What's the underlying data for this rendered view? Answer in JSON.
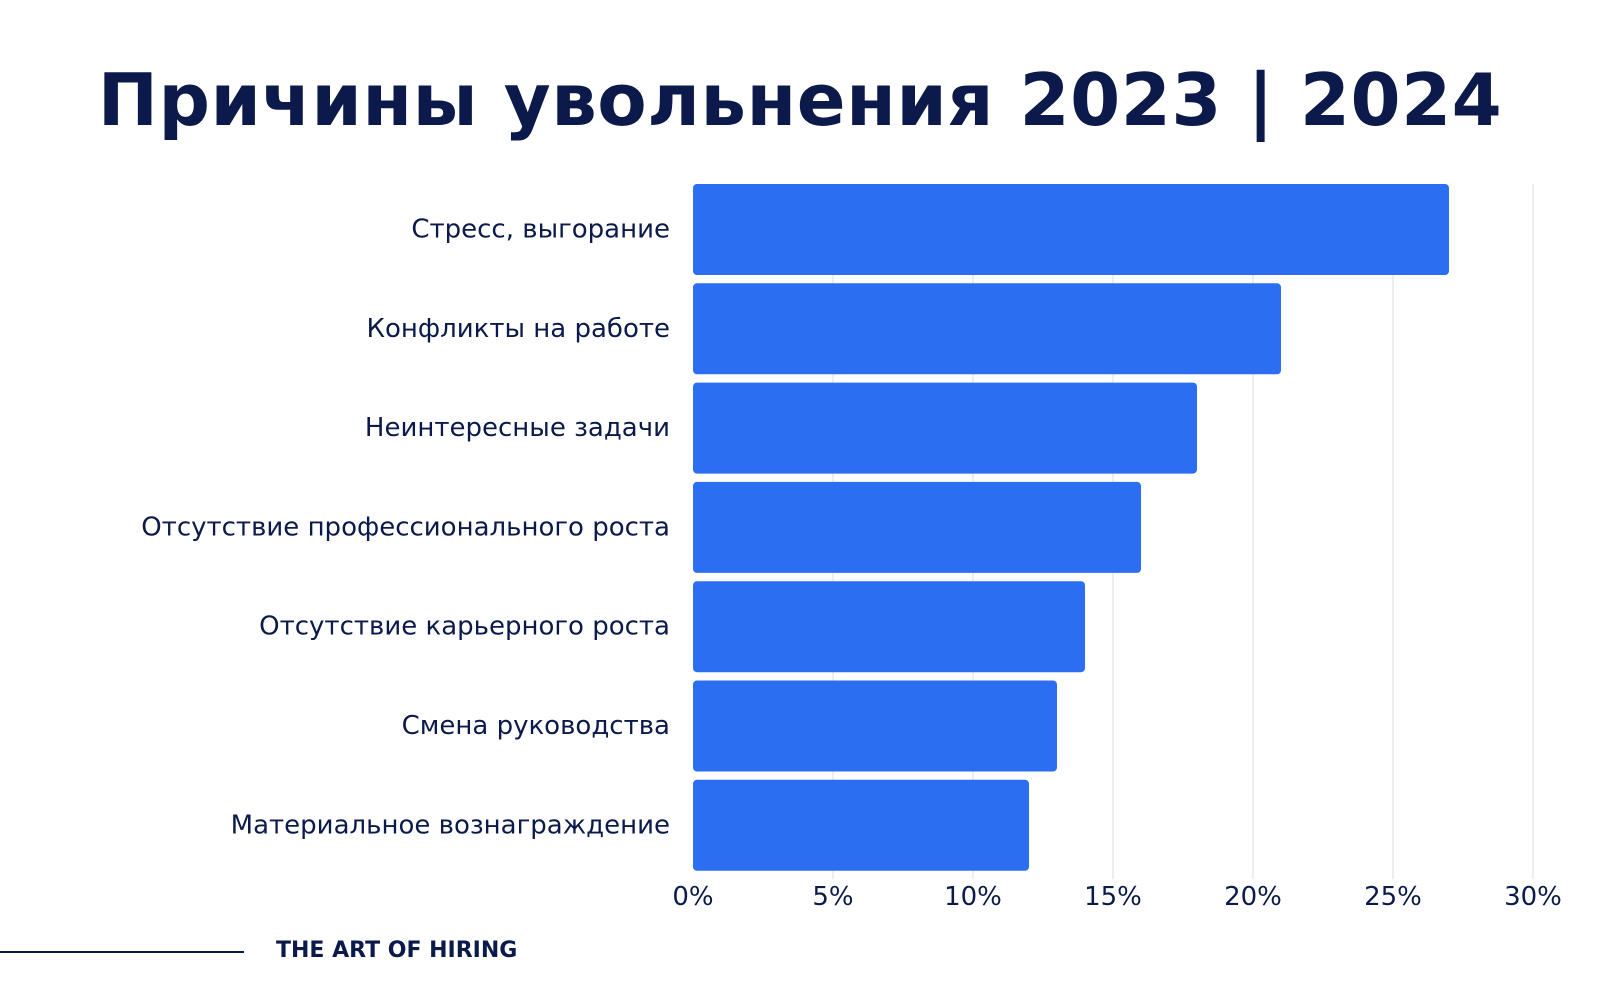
{
  "title": "Причины увольнения 2023 | 2024",
  "footer": {
    "brand": "THE ART OF HIRING"
  },
  "colors": {
    "bar": "#2c6ef2",
    "text": "#0b1a4a",
    "grid": "#dcdcdc"
  },
  "chart_data": {
    "type": "bar",
    "orientation": "horizontal",
    "categories": [
      "Стресс, выгорание",
      "Конфликты на работе",
      "Неинтересные задачи",
      "Отсутствие профессионального роста",
      "Отсутствие карьерного роста",
      "Смена руководства",
      "Материальное вознаграждение"
    ],
    "values": [
      27,
      21,
      18,
      16,
      14,
      13,
      12
    ],
    "xlim": [
      0,
      30
    ],
    "xticks": [
      0,
      5,
      10,
      15,
      20,
      25,
      30
    ],
    "tick_labels": [
      "0%",
      "5%",
      "10%",
      "15%",
      "20%",
      "25%",
      "30%"
    ],
    "grid": true
  }
}
